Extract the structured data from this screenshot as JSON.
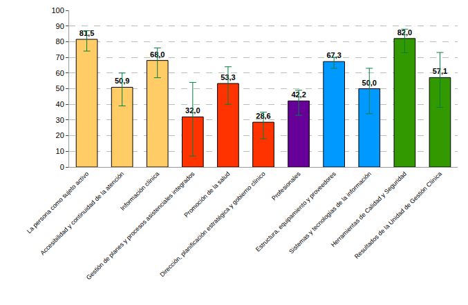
{
  "chart_data": {
    "type": "bar",
    "categories": [
      "La persona como sujeto activo",
      "Accesibilidad y continuidad de la atención",
      "Información clínica",
      "Gestión de planes y procesos asistenciales integrados",
      "Promoción de la salud",
      "Dirección, planificación estratégica y gobierno clínico",
      "Profesionales",
      "Estructura, equipamiento y proveedores",
      "Sistemas y tecnologías de la información",
      "Herramientas de Calidad y Seguridad",
      "Resultados de la Unidad de Gestión Clínica"
    ],
    "values": [
      81.5,
      50.9,
      68.0,
      32.0,
      53.3,
      28.6,
      42.2,
      67.3,
      50.0,
      82.0,
      57.1
    ],
    "value_labels": [
      "81,5",
      "50,9",
      "68,0",
      "32,0",
      "53,3",
      "28,6",
      "42,2",
      "67,3",
      "50,0",
      "82,0",
      "57,1"
    ],
    "error_plus": [
      5.5,
      9.1,
      8,
      22,
      10.7,
      6.4,
      6.8,
      2.7,
      13,
      6,
      16
    ],
    "error_minus": [
      7.5,
      11.9,
      11,
      25,
      13.3,
      10.6,
      9.2,
      4.3,
      16,
      9,
      19
    ],
    "colors": [
      "#ffcc66",
      "#ffcc66",
      "#ffcc66",
      "#ff3300",
      "#ff3300",
      "#ff3300",
      "#660099",
      "#0099ff",
      "#0099ff",
      "#339900",
      "#339900"
    ],
    "ylim": [
      0,
      100
    ],
    "yticks": [
      0,
      10,
      20,
      30,
      40,
      50,
      60,
      70,
      80,
      90,
      100
    ],
    "grid": true,
    "data_labels": true
  }
}
